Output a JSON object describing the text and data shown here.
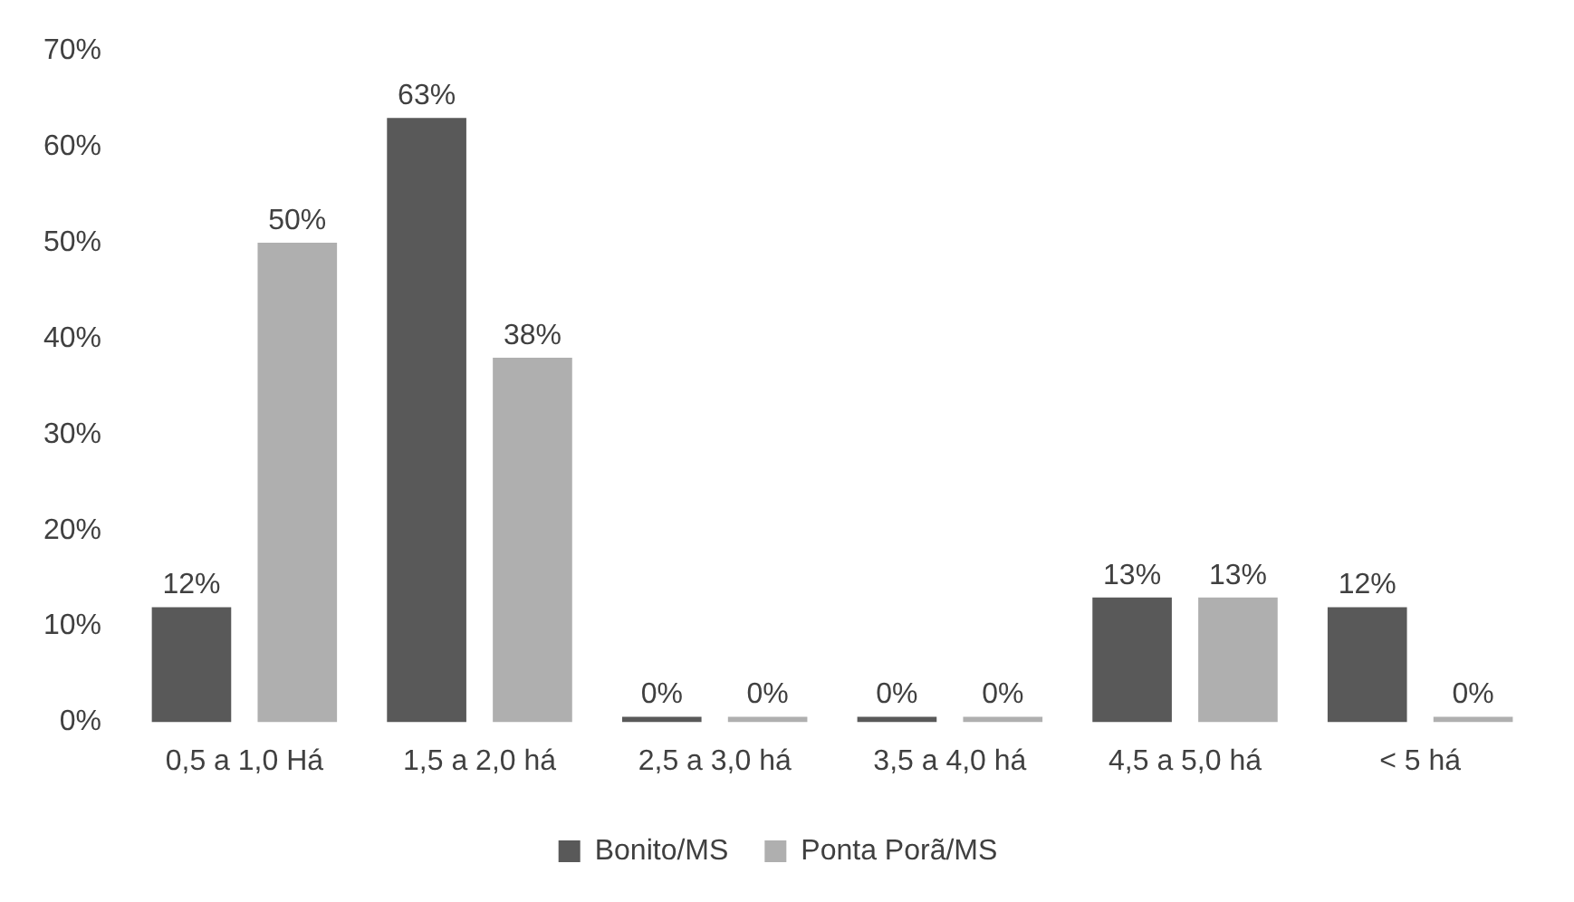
{
  "chart_data": {
    "type": "bar",
    "categories": [
      "0,5 a 1,0 Há",
      "1,5 a 2,0 há",
      "2,5 a 3,0 há",
      "3,5 a 4,0 há",
      "4,5 a 5,0 há",
      "< 5 há"
    ],
    "series": [
      {
        "name": "Bonito/MS",
        "color": "#595959",
        "values": [
          12,
          63,
          0,
          0,
          13,
          12
        ],
        "value_labels": [
          "12%",
          "63%",
          "0%",
          "0%",
          "13%",
          "12%"
        ]
      },
      {
        "name": "Ponta Porã/MS",
        "color": "#afafaf",
        "values": [
          50,
          38,
          0,
          0,
          13,
          0
        ],
        "value_labels": [
          "50%",
          "38%",
          "0%",
          "0%",
          "13%",
          "0%"
        ]
      }
    ],
    "ylim": [
      0,
      70
    ],
    "yticks": [
      {
        "value": 0,
        "label": "0%"
      },
      {
        "value": 10,
        "label": "10%"
      },
      {
        "value": 20,
        "label": "20%"
      },
      {
        "value": 30,
        "label": "30%"
      },
      {
        "value": 40,
        "label": "40%"
      },
      {
        "value": 50,
        "label": "50%"
      },
      {
        "value": 60,
        "label": "60%"
      },
      {
        "value": 70,
        "label": "70%"
      }
    ],
    "grid": false,
    "legend": "bottom"
  }
}
